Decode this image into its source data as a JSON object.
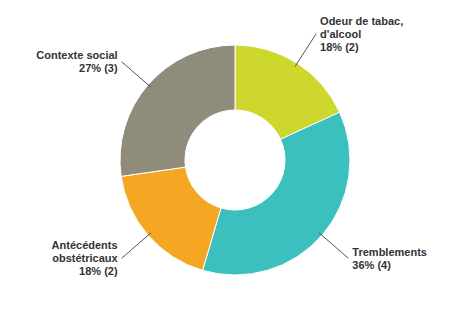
{
  "chart_data": {
    "type": "pie",
    "categories": [
      "Odeur de tabac, d'alcool",
      "Tremblements",
      "Antécédents obstétricaux",
      "Contexte social"
    ],
    "values": [
      18,
      36,
      18,
      27
    ],
    "value_labels": [
      "18% (2)",
      "36% (4)",
      "18% (2)",
      "27% (3)"
    ],
    "colors": [
      "#cdd72e",
      "#3bbfbf",
      "#f5a623",
      "#8f8c7c"
    ]
  }
}
